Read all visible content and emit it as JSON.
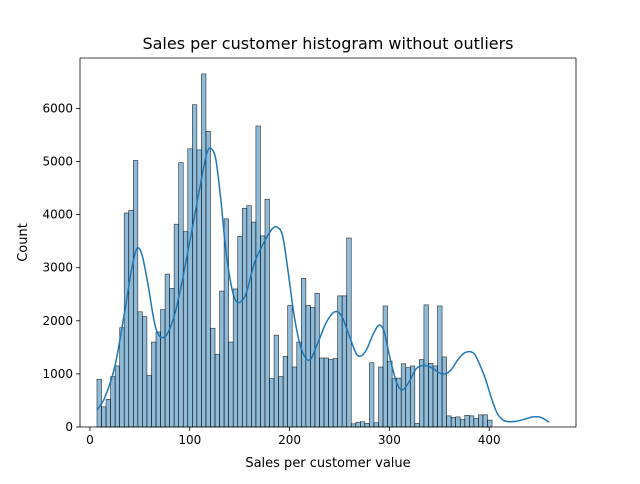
{
  "chart_data": {
    "type": "bar",
    "title": "Sales per customer histogram without outliers",
    "xlabel": "Sales per customer value",
    "ylabel": "Count",
    "xlim": [
      -10,
      487
    ],
    "ylim": [
      0,
      6950
    ],
    "xticks": [
      0,
      100,
      200,
      300,
      400
    ],
    "yticks": [
      0,
      1000,
      2000,
      3000,
      4000,
      5000,
      6000
    ],
    "grid": false,
    "bar_color": "#1f77b4",
    "bar_alpha": 0.5,
    "kde_color": "#1f77b4",
    "bin_start": 7,
    "bin_width": 4.55,
    "counts": [
      900,
      380,
      520,
      950,
      1150,
      1870,
      4030,
      4080,
      5020,
      2170,
      2080,
      970,
      1600,
      1790,
      2210,
      2880,
      2610,
      3820,
      4980,
      3680,
      5240,
      6070,
      5220,
      6650,
      5570,
      1860,
      1370,
      2560,
      3920,
      1600,
      2600,
      3590,
      4120,
      4170,
      3860,
      5670,
      3600,
      4290,
      910,
      1730,
      950,
      1330,
      2290,
      1130,
      1600,
      2800,
      2290,
      2250,
      2520,
      1300,
      1300,
      1270,
      1290,
      2470,
      2470,
      3560,
      60,
      90,
      100,
      70,
      1210,
      80,
      1130,
      2280,
      1240,
      910,
      920,
      1190,
      1120,
      1150,
      70,
      1270,
      2300,
      1200,
      1150,
      2280,
      1320,
      210,
      180,
      190,
      140,
      220,
      210,
      160,
      230,
      230,
      130
    ],
    "kde": {
      "x": [
        7,
        15,
        25,
        35,
        42,
        47,
        52,
        58,
        66,
        75,
        85,
        95,
        105,
        112,
        117,
        121,
        126,
        131,
        137,
        145,
        155,
        165,
        175,
        183,
        188,
        193,
        198,
        205,
        212,
        220,
        228,
        236,
        243,
        248,
        253,
        260,
        268,
        276,
        284,
        290,
        295,
        300,
        307,
        313,
        320,
        327,
        335,
        343,
        350,
        356,
        362,
        368,
        374,
        380,
        385,
        390,
        396,
        402,
        408,
        414,
        420,
        428,
        436,
        444,
        452,
        460
      ],
      "y": [
        320,
        560,
        1150,
        2200,
        3000,
        3360,
        3250,
        2700,
        1860,
        1700,
        2130,
        3000,
        4000,
        4700,
        5150,
        5250,
        5050,
        4300,
        3200,
        2420,
        2450,
        3100,
        3500,
        3740,
        3760,
        3600,
        3000,
        2050,
        1460,
        1260,
        1570,
        1940,
        2140,
        2170,
        2060,
        1710,
        1350,
        1420,
        1760,
        1920,
        1780,
        1350,
        850,
        700,
        860,
        1100,
        1160,
        1110,
        1020,
        1000,
        1080,
        1250,
        1380,
        1420,
        1380,
        1200,
        920,
        560,
        260,
        130,
        100,
        110,
        150,
        190,
        180,
        90
      ]
    }
  }
}
